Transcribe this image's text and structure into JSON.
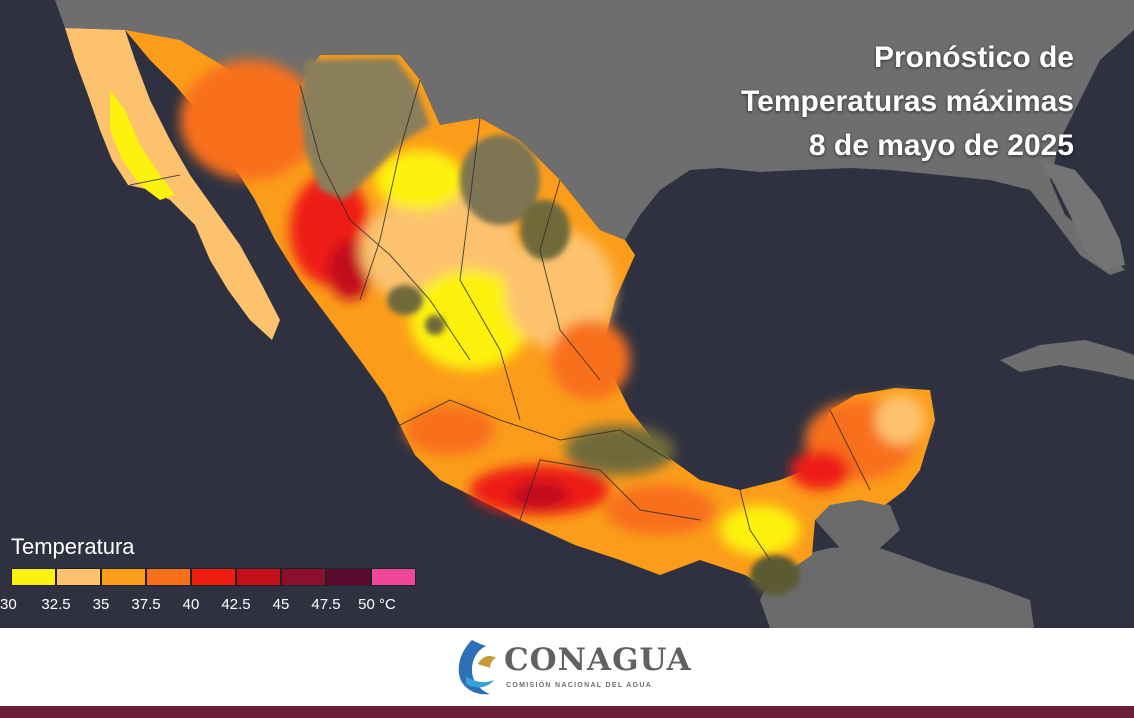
{
  "title": {
    "line1": "Pronóstico de",
    "line2": "Temperaturas máximas",
    "line3": "8 de mayo de 2025"
  },
  "legend": {
    "title": "Temperatura",
    "unit": "°C",
    "ticks": [
      "30",
      "32.5",
      "35",
      "37.5",
      "40",
      "42.5",
      "45",
      "47.5",
      "50 °C"
    ],
    "colors": [
      "#fdf20e",
      "#fcc26d",
      "#fb9d1a",
      "#f8701c",
      "#ee1e12",
      "#c20f1a",
      "#8e0f2d",
      "#5b0b30",
      "#f0479a"
    ]
  },
  "brand": {
    "name": "CONAGUA",
    "subtitle": "COMISIÓN NACIONAL DEL AGUA"
  },
  "colors": {
    "ocean": "#2f3140",
    "land_outside": "#6e6e6e",
    "footer_strip": "#6b1f3a"
  }
}
